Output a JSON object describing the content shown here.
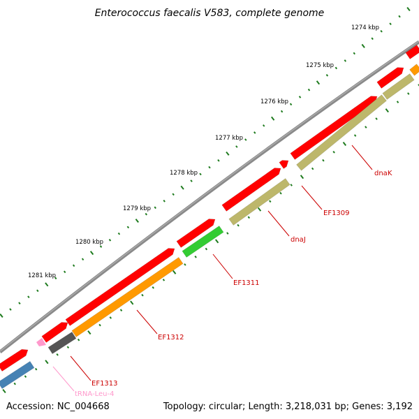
{
  "title": "Enterococcus faecalis V583, complete genome",
  "footer": {
    "accession": "Accession: NC_004668",
    "summary": "Topology: circular; Length: 3,218,031 bp; Genes: 3,192"
  },
  "ruler": {
    "labels": [
      "1274 kbp",
      "1275 kbp",
      "1276 kbp",
      "1277 kbp",
      "1278 kbp",
      "1279 kbp",
      "1280 kbp",
      "1281 kbp"
    ]
  },
  "colors": {
    "backbone": "#888888",
    "cds": "#ff0000",
    "orange_gene": "#ff9900",
    "khaki_gene": "#bdb76b",
    "green_gene": "#33cc33",
    "dark_gene": "#555555",
    "blue_gene": "#4682b4",
    "trna": "#ff99cc",
    "tick": "#1e7b1e",
    "label_red": "#cc0000",
    "label_pink": "#ff99cc"
  },
  "genes": [
    {
      "name": "dnaK",
      "color": "label_red"
    },
    {
      "name": "EF1309",
      "color": "label_red"
    },
    {
      "name": "dnaJ",
      "color": "label_red"
    },
    {
      "name": "EF1311",
      "color": "label_red"
    },
    {
      "name": "EF1312",
      "color": "label_red"
    },
    {
      "name": "EF1313",
      "color": "label_red"
    },
    {
      "name": "tRNA-Leu-4",
      "color": "label_pink"
    }
  ]
}
